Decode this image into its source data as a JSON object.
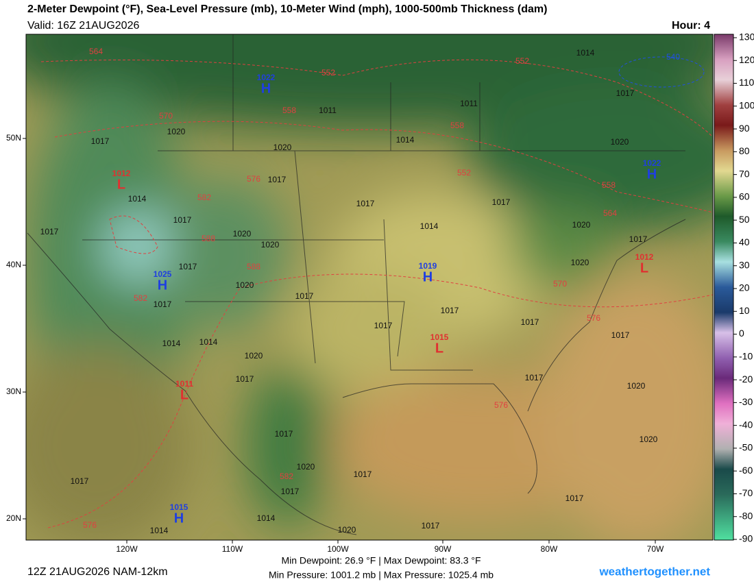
{
  "header": {
    "title": "2-Meter Dewpoint (°F), Sea-Level Pressure (mb), 10-Meter Wind (mph), 1000-500mb Thickness (dam)",
    "valid": "Valid: 16Z 21AUG2026",
    "hour": "Hour: 4"
  },
  "colorbar": {
    "ticks": [
      130,
      120,
      110,
      100,
      90,
      80,
      70,
      60,
      50,
      40,
      30,
      20,
      10,
      0,
      -10,
      -20,
      -30,
      -40,
      -50,
      -60,
      -70,
      -80,
      -90
    ]
  },
  "axes": {
    "lon": [
      "120W",
      "110W",
      "100W",
      "90W",
      "80W",
      "70W"
    ],
    "lat": [
      "50N",
      "40N",
      "30N",
      "20N"
    ]
  },
  "centers": [
    {
      "type": "H",
      "value": 1022
    },
    {
      "type": "L",
      "value": 1012
    },
    {
      "type": "H",
      "value": 1025
    },
    {
      "type": "H",
      "value": 1019
    },
    {
      "type": "L",
      "value": 1015
    },
    {
      "type": "L",
      "value": 1011
    },
    {
      "type": "H",
      "value": 1015
    },
    {
      "type": "H",
      "value": 1022
    },
    {
      "type": "L",
      "value": 1012
    }
  ],
  "isobar_labels": [
    1014,
    1011,
    1017,
    1011,
    1020,
    1017,
    1014,
    1020,
    1020,
    1017,
    1014,
    1017,
    1017,
    1017,
    1014,
    1020,
    1017,
    1020,
    1020,
    1017,
    1017,
    1020,
    1020,
    1017,
    1017,
    1017,
    1017,
    1017,
    1017,
    1014,
    1014,
    1020,
    1017,
    1017,
    1020,
    1017,
    1020,
    1020,
    1017,
    1017,
    1017,
    1017,
    1014,
    1014,
    1017,
    1020
  ],
  "thickness_labels": [
    564,
    552,
    552,
    540,
    570,
    558,
    558,
    552,
    576,
    558,
    582,
    564,
    588,
    588,
    570,
    582,
    576,
    576,
    582,
    576
  ],
  "footer": {
    "run": "12Z 21AUG2026 NAM-12km",
    "dewpoint": "Min Dewpoint:  26.9 °F | Max Dewpoint:  83.3 °F",
    "pressure": "Min Pressure: 1001.2 mb | Max Pressure: 1025.4 mb",
    "site": "weathertogether.net"
  }
}
